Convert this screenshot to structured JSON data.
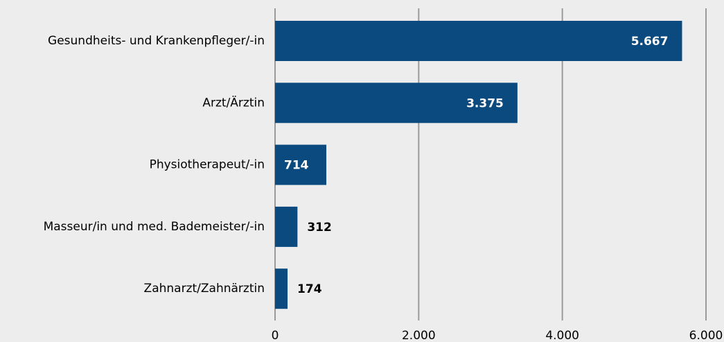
{
  "chart_data": {
    "type": "barh",
    "categories": [
      "Gesundheits- und Krankenpfleger/-in",
      "Arzt/Ärztin",
      "Physiotherapeut/-in",
      "Masseur/in und med. Bademeister/-in",
      "Zahnarzt/Zahnärztin"
    ],
    "values": [
      5667,
      3375,
      714,
      312,
      174
    ],
    "value_labels": [
      "5.667",
      "3.375",
      "714",
      "312",
      "174"
    ],
    "color": "#0a4a7f",
    "xlim": [
      0,
      6000
    ],
    "xticks": [
      0,
      {
        "value": 2000,
        "label": "2.000"
      },
      {
        "value": 4000,
        "label": "4.000"
      },
      {
        "value": 6000,
        "label": "6.000"
      }
    ],
    "grid": true
  }
}
